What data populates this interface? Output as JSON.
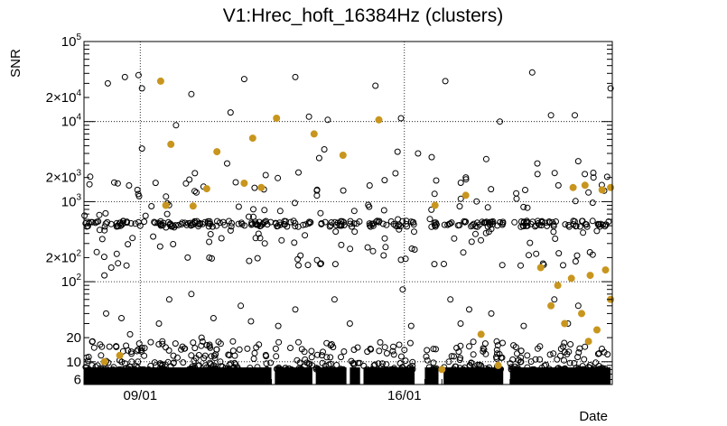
{
  "chart_data": {
    "type": "scatter",
    "title": "V1:Hrec_hoft_16384Hz (clusters)",
    "xlabel": "Date",
    "ylabel": "SNR",
    "x_ticks": [
      "09/01",
      "16/01"
    ],
    "y_scale": "log",
    "ylim": [
      5.2,
      100000
    ],
    "y_ticks": [
      {
        "value": 6,
        "label": "6"
      },
      {
        "value": 10,
        "label": "10"
      },
      {
        "value": 20,
        "label": "20"
      },
      {
        "value": 100,
        "label": "10",
        "exp": "2"
      },
      {
        "value": 200,
        "label": "2×10",
        "exp": "2"
      },
      {
        "value": 1000,
        "label": "10",
        "exp": "3"
      },
      {
        "value": 2000,
        "label": "2×10",
        "exp": "3"
      },
      {
        "value": 10000,
        "label": "10",
        "exp": "4"
      },
      {
        "value": 20000,
        "label": "2×10",
        "exp": "4"
      },
      {
        "value": 100000,
        "label": "10",
        "exp": "5"
      }
    ],
    "grid": true,
    "colors": {
      "open_markers": "#000000",
      "filled_markers": "#c8961e"
    },
    "series": [
      {
        "marker": "open-circle",
        "points": [
          [
            0.5,
            18
          ],
          [
            1.4,
            30000
          ],
          [
            2.4,
            36000
          ],
          [
            3.2,
            38000
          ],
          [
            3.4,
            26000
          ],
          [
            6.3,
            22000
          ],
          [
            6.6,
            1300
          ],
          [
            8.6,
            13000
          ],
          [
            9.4,
            34000
          ],
          [
            12.4,
            36000
          ],
          [
            13.2,
            11500
          ],
          [
            14.3,
            10500
          ],
          [
            17.1,
            28000
          ],
          [
            18.6,
            11000
          ],
          [
            21.2,
            32000
          ],
          [
            24.4,
            10000
          ],
          [
            26.3,
            41000
          ],
          [
            27.4,
            12000
          ],
          [
            28.8,
            12000
          ],
          [
            29.0,
            3200
          ],
          [
            30.9,
            26000
          ],
          [
            3.4,
            4600
          ],
          [
            5.4,
            9000
          ],
          [
            8.4,
            3000
          ],
          [
            13.8,
            3500
          ],
          [
            14.1,
            4500
          ],
          [
            18.4,
            4200
          ],
          [
            19.6,
            4000
          ],
          [
            20.4,
            3600
          ],
          [
            23.6,
            3400
          ],
          [
            26.6,
            3000
          ],
          [
            29.6,
            1300
          ],
          [
            29.9,
            2000
          ],
          [
            1.2,
            120
          ],
          [
            1.6,
            150
          ],
          [
            2.0,
            170
          ],
          [
            5.0,
            60
          ],
          [
            6.3,
            70
          ],
          [
            9.2,
            50
          ],
          [
            12.4,
            45
          ],
          [
            14.7,
            60
          ],
          [
            18.7,
            80
          ],
          [
            21.5,
            60
          ],
          [
            22.6,
            45
          ],
          [
            23.9,
            40
          ],
          [
            27.6,
            60
          ],
          [
            29.0,
            50
          ],
          [
            1.3,
            40
          ],
          [
            2.2,
            35
          ],
          [
            4.4,
            30
          ],
          [
            7.6,
            35
          ],
          [
            9.8,
            32
          ],
          [
            11.4,
            28
          ],
          [
            15.6,
            30
          ],
          [
            19.2,
            28
          ],
          [
            22.1,
            30
          ],
          [
            25.8,
            28
          ],
          [
            28.4,
            30
          ],
          [
            0.3,
            8
          ],
          [
            0.8,
            9
          ],
          [
            1.0,
            12
          ],
          [
            0.6,
            15
          ],
          [
            2.7,
            22
          ],
          [
            4.6,
            18
          ],
          [
            6.9,
            20
          ]
        ]
      },
      {
        "marker": "filled-circle",
        "points": [
          [
            4.5,
            32000
          ],
          [
            5.1,
            5200
          ],
          [
            7.8,
            4200
          ],
          [
            9.9,
            6200
          ],
          [
            11.3,
            11000
          ],
          [
            13.5,
            7000
          ],
          [
            15.2,
            3800
          ],
          [
            17.3,
            10500
          ],
          [
            4.8,
            900
          ],
          [
            7.2,
            1450
          ],
          [
            6.4,
            880
          ],
          [
            9.4,
            1700
          ],
          [
            10.4,
            1500
          ],
          [
            20.6,
            900
          ],
          [
            22.4,
            1200
          ],
          [
            28.7,
            1500
          ],
          [
            29.4,
            1600
          ],
          [
            30.4,
            1400
          ],
          [
            30.9,
            1500
          ],
          [
            26.8,
            150
          ],
          [
            27.8,
            90
          ],
          [
            28.6,
            110
          ],
          [
            29.7,
            120
          ],
          [
            30.6,
            140
          ],
          [
            30.9,
            60
          ],
          [
            27.4,
            50
          ],
          [
            29.2,
            40
          ],
          [
            28.2,
            30
          ],
          [
            30.1,
            25
          ],
          [
            29.6,
            18
          ],
          [
            23.3,
            22
          ],
          [
            24.3,
            9
          ],
          [
            21.0,
            8
          ],
          [
            1.2,
            10
          ],
          [
            2.1,
            12
          ]
        ]
      }
    ]
  }
}
